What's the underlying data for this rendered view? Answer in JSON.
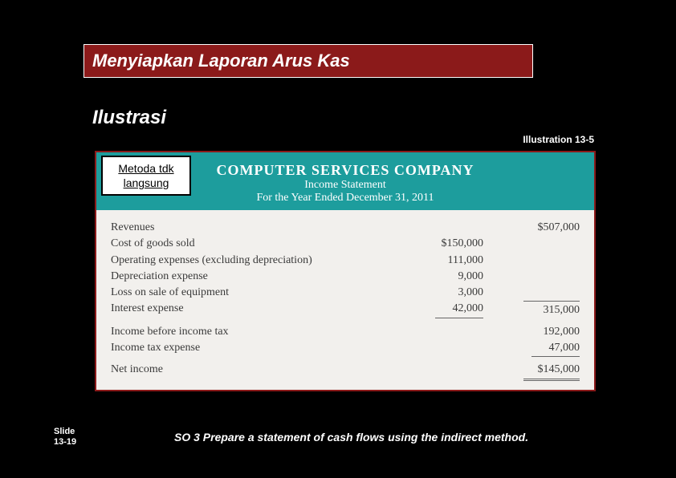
{
  "title": "Menyiapkan Laporan Arus Kas",
  "subtitle": "Ilustrasi",
  "illustration_ref": "Illustration 13-5",
  "method_badge": "Metoda tdk langsung",
  "statement": {
    "company": "COMPUTER SERVICES COMPANY",
    "title": "Income Statement",
    "period": "For the Year Ended December 31, 2011",
    "rows": {
      "revenues": {
        "label": "Revenues",
        "total": "$507,000"
      },
      "cogs": {
        "label": "Cost of goods sold",
        "amt": "$150,000"
      },
      "opex": {
        "label": "Operating expenses (excluding depreciation)",
        "amt": "111,000"
      },
      "dep": {
        "label": "Depreciation expense",
        "amt": "9,000"
      },
      "loss": {
        "label": "Loss on sale of equipment",
        "amt": "3,000"
      },
      "interest": {
        "label": "Interest expense",
        "amt": "42,000",
        "total": "315,000"
      },
      "pretax": {
        "label": "Income before income tax",
        "total": "192,000"
      },
      "tax": {
        "label": "Income tax expense",
        "total": "47,000"
      },
      "net": {
        "label": "Net income",
        "total": "$145,000"
      }
    }
  },
  "slide_label": "Slide",
  "slide_num": "13-19",
  "so_text": "SO 3 Prepare a statement of cash flows using the indirect method."
}
